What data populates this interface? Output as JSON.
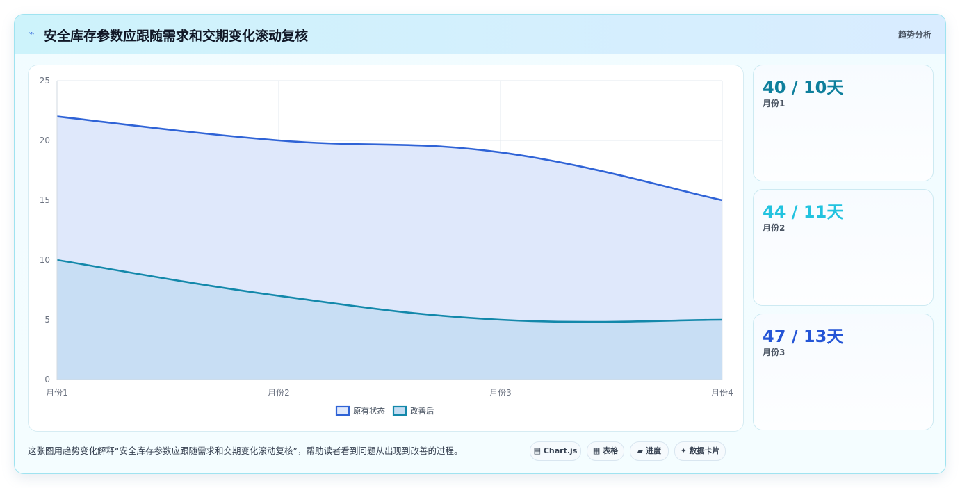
{
  "header": {
    "icon": "lightning-icon",
    "title": "安全库存参数应跟随需求和交期变化滚动复核",
    "tag": "趋势分析"
  },
  "chart_data": {
    "type": "area",
    "categories": [
      "月份1",
      "月份2",
      "月份3",
      "月份4"
    ],
    "ylim": [
      0,
      25
    ],
    "yticks": [
      0,
      5,
      10,
      15,
      20,
      25
    ],
    "grid": true,
    "legend_position": "bottom",
    "series": [
      {
        "name": "原有状态",
        "values": [
          22,
          20,
          19,
          15
        ],
        "color": "#2f63d6",
        "fill": "#dfe8fb"
      },
      {
        "name": "改善后",
        "values": [
          10,
          7,
          5,
          5
        ],
        "color": "#1388aa",
        "fill": "#c4dcf2"
      }
    ]
  },
  "stats": [
    {
      "value": "40 / 10天",
      "label": "月份1",
      "color": "#0e7f9c"
    },
    {
      "value": "44 / 11天",
      "label": "月份2",
      "color": "#22c3df"
    },
    {
      "value": "47 / 13天",
      "label": "月份3",
      "color": "#2455d6"
    }
  ],
  "caption": "这张图用趋势变化解释“安全库存参数应跟随需求和交期变化滚动复核”，帮助读者看到问题从出现到改善的过程。",
  "chips": [
    {
      "icon": "chart-icon",
      "label": "Chart.js"
    },
    {
      "icon": "table-icon",
      "label": "表格"
    },
    {
      "icon": "progress-icon",
      "label": "进度"
    },
    {
      "icon": "sparkle-icon",
      "label": "数据卡片"
    }
  ]
}
